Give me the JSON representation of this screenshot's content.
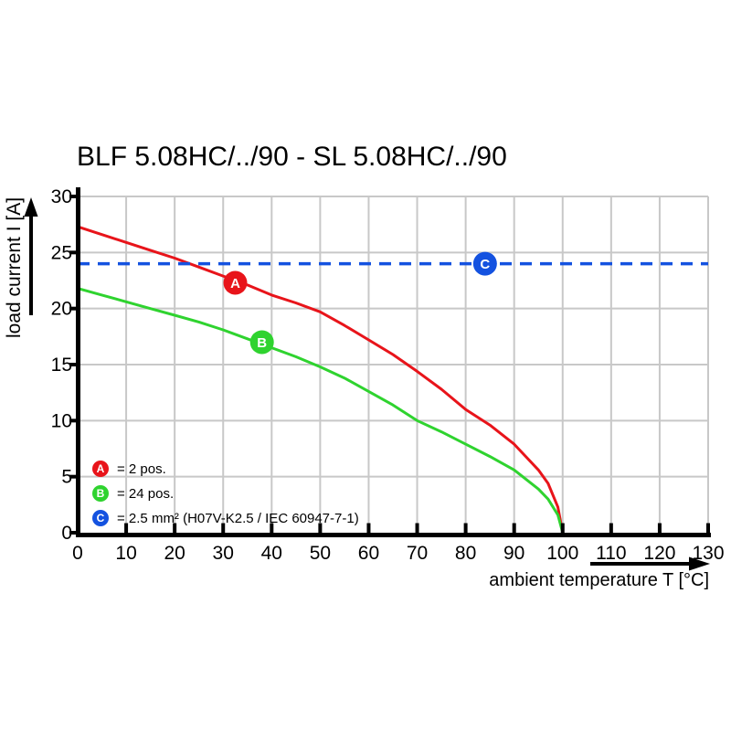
{
  "title": "BLF 5.08HC/../90 - SL 5.08HC/../90",
  "colors": {
    "background": "#ffffff",
    "grid": "#c8c8c8",
    "axis": "#000000",
    "curve_a_red": "#e8141a",
    "curve_b_green": "#2fd32f",
    "limit_c_blue": "#1452e0",
    "marker_letter": "#ffffff"
  },
  "chart_data": {
    "type": "line",
    "title": "BLF 5.08HC/../90 - SL 5.08HC/../90",
    "xlabel": "ambient temperature T [°C]",
    "ylabel": "load current I [A]",
    "xlim": [
      0,
      130
    ],
    "ylim": [
      0,
      30
    ],
    "xticks": [
      0,
      10,
      20,
      30,
      40,
      50,
      60,
      70,
      80,
      90,
      100,
      110,
      120,
      130
    ],
    "yticks": [
      0,
      5,
      10,
      15,
      20,
      25,
      30
    ],
    "grid": true,
    "legend_position": "inside-bottom-left",
    "series": [
      {
        "name": "A",
        "label": "= 2 pos.",
        "color": "#e8141a",
        "line_style": "solid",
        "points": [
          [
            0,
            27.3
          ],
          [
            5,
            26.6
          ],
          [
            10,
            25.9
          ],
          [
            15,
            25.2
          ],
          [
            20,
            24.5
          ],
          [
            25,
            23.7
          ],
          [
            30,
            22.9
          ],
          [
            35,
            22.1
          ],
          [
            40,
            21.2
          ],
          [
            45,
            20.5
          ],
          [
            50,
            19.7
          ],
          [
            55,
            18.5
          ],
          [
            60,
            17.2
          ],
          [
            65,
            15.9
          ],
          [
            70,
            14.4
          ],
          [
            75,
            12.8
          ],
          [
            80,
            11.0
          ],
          [
            85,
            9.6
          ],
          [
            90,
            7.9
          ],
          [
            95,
            5.6
          ],
          [
            97,
            4.4
          ],
          [
            99,
            2.3
          ],
          [
            100,
            0
          ]
        ],
        "marker": {
          "x": 32.5,
          "y": 22.3,
          "letter": "A"
        }
      },
      {
        "name": "B",
        "label": "= 24 pos.",
        "color": "#2fd32f",
        "line_style": "solid",
        "points": [
          [
            0,
            21.8
          ],
          [
            5,
            21.2
          ],
          [
            10,
            20.6
          ],
          [
            15,
            20.0
          ],
          [
            20,
            19.4
          ],
          [
            25,
            18.8
          ],
          [
            30,
            18.1
          ],
          [
            35,
            17.3
          ],
          [
            40,
            16.5
          ],
          [
            45,
            15.7
          ],
          [
            50,
            14.8
          ],
          [
            55,
            13.8
          ],
          [
            60,
            12.6
          ],
          [
            65,
            11.4
          ],
          [
            70,
            10.0
          ],
          [
            75,
            9.0
          ],
          [
            80,
            7.9
          ],
          [
            85,
            6.8
          ],
          [
            90,
            5.6
          ],
          [
            95,
            3.9
          ],
          [
            97,
            3.0
          ],
          [
            99,
            1.6
          ],
          [
            100,
            0
          ]
        ],
        "marker": {
          "x": 38,
          "y": 17.0,
          "letter": "B"
        }
      },
      {
        "name": "C",
        "label": "= 2.5 mm² (H07V-K2.5 / IEC 60947-7-1)",
        "color": "#1452e0",
        "line_style": "dashed",
        "points": [
          [
            0,
            24
          ],
          [
            130,
            24
          ]
        ],
        "marker": {
          "x": 84,
          "y": 24,
          "letter": "C"
        }
      }
    ]
  }
}
